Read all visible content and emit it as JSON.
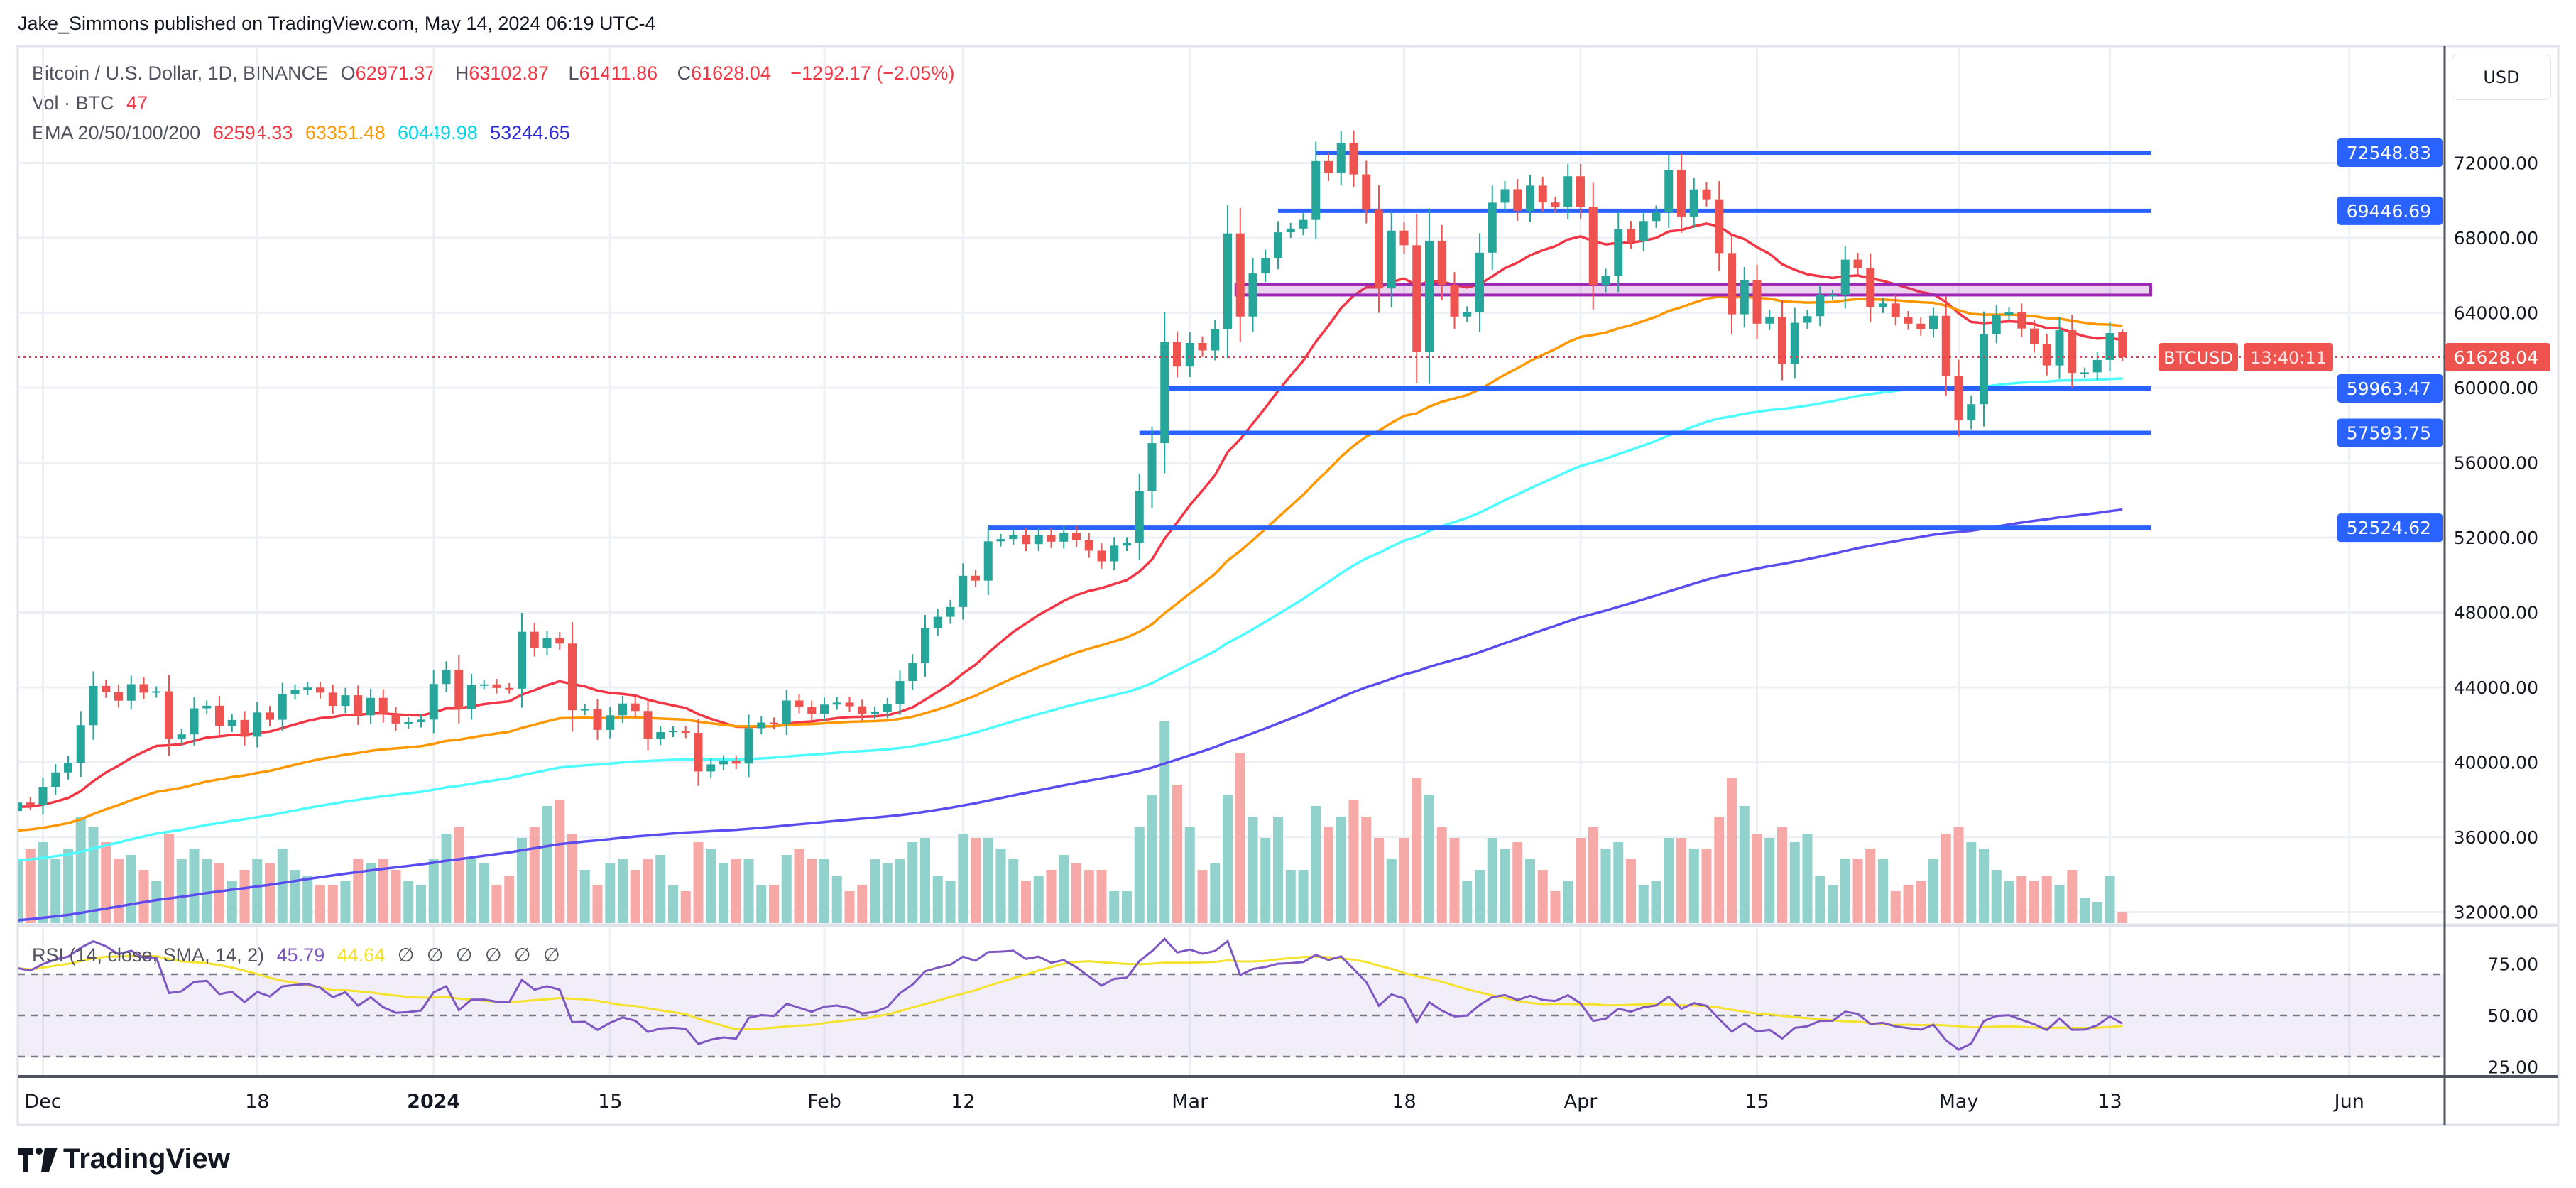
{
  "header": {
    "title": "Jake_Simmons published on TradingView.com, May 14, 2024 06:19 UTC-4"
  },
  "legend": {
    "symbol": "Bitcoin / U.S. Dollar, 1D, BINANCE",
    "open_label": "O",
    "open": "62971.37",
    "high_label": "H",
    "high": "63102.87",
    "low_label": "L",
    "low": "61411.86",
    "close_label": "C",
    "close": "61628.04",
    "change": "−1292.17 (−2.05%)",
    "volume_label": "Vol · BTC",
    "volume": "47",
    "ema_label": "EMA 20/50/100/200",
    "ema20": "62594.33",
    "ema50": "63351.48",
    "ema100": "60449.98",
    "ema200": "53244.65"
  },
  "rsi_legend": {
    "label": "RSI (14, close, SMA, 14, 2)",
    "rsi": "45.79",
    "sma": "44.64",
    "na": [
      "∅",
      "∅",
      "∅",
      "∅",
      "∅",
      "∅"
    ]
  },
  "currency_button": "USD",
  "price_tag": {
    "symbol": "BTCUSD",
    "price": "61628.04",
    "countdown": "13:40:11"
  },
  "footer": {
    "logo_text": "TradingView"
  },
  "colors": {
    "up": "#26a69a",
    "down": "#ef5350",
    "ema20": "#f23645",
    "ema50": "#ff9800",
    "ema100": "#4dfcff",
    "ema200": "#5b4cf0",
    "level": "#2962ff",
    "zone": "#9c27b0",
    "rsi": "#7e57c2",
    "rsi_sma": "#f5e22c"
  },
  "chart_data": {
    "type": "candlestick",
    "interval": "1D",
    "date_range": [
      "2023-11-29",
      "2024-05-14"
    ],
    "close": [
      37850,
      37720,
      38690,
      39460,
      39970,
      41980,
      44080,
      43770,
      43290,
      44170,
      43720,
      43790,
      41240,
      41490,
      42880,
      43020,
      41940,
      42260,
      41370,
      42660,
      42270,
      43650,
      43860,
      43990,
      43720,
      43010,
      43580,
      42510,
      43440,
      42580,
      42070,
      42140,
      42280,
      44180,
      44950,
      42850,
      44150,
      44160,
      43970,
      43930,
      46970,
      46110,
      46630,
      46340,
      42780,
      42840,
      41730,
      42510,
      43140,
      42740,
      41260,
      41610,
      41680,
      41570,
      39510,
      39890,
      40080,
      39930,
      41820,
      42120,
      42030,
      43300,
      42950,
      42580,
      43080,
      43190,
      42990,
      42580,
      42700,
      43090,
      44340,
      45290,
      47150,
      47770,
      48290,
      49960,
      49700,
      51800,
      51920,
      52140,
      51650,
      52140,
      51780,
      52260,
      51850,
      51300,
      50730,
      51570,
      51730,
      54480,
      57040,
      62430,
      61130,
      62390,
      61990,
      63110,
      68240,
      63800,
      66100,
      66920,
      68300,
      68500,
      68960,
      72100,
      71450,
      73070,
      71390,
      69500,
      65300,
      68390,
      67610,
      61930,
      67850,
      65500,
      63800,
      64040,
      67210,
      69880,
      70600,
      69450,
      70790,
      69890,
      69650,
      71290,
      69650,
      65470,
      65980,
      68490,
      67830,
      68900,
      69360,
      71620,
      69140,
      70590,
      70060,
      67190,
      63920,
      65740,
      63420,
      63790,
      61280,
      63470,
      63820,
      64940,
      64950,
      66840,
      66400,
      64290,
      64500,
      63760,
      63420,
      63110,
      63840,
      60640,
      58250,
      59120,
      62880,
      63890,
      64030,
      63160,
      62330,
      61190,
      63070,
      60790,
      60820,
      61480,
      62920,
      61628.04
    ],
    "last_candle": {
      "open": 62971.37,
      "high": 63102.87,
      "low": 61411.86,
      "close": 61628.04
    },
    "volume_relative": [
      30,
      35,
      38,
      30,
      35,
      50,
      45,
      38,
      30,
      32,
      25,
      20,
      42,
      30,
      35,
      30,
      28,
      20,
      25,
      30,
      28,
      35,
      25,
      22,
      18,
      18,
      20,
      30,
      28,
      30,
      25,
      20,
      18,
      30,
      42,
      45,
      30,
      28,
      18,
      22,
      40,
      45,
      55,
      58,
      42,
      25,
      18,
      28,
      30,
      25,
      30,
      32,
      18,
      15,
      38,
      35,
      28,
      30,
      30,
      18,
      18,
      32,
      35,
      30,
      30,
      22,
      15,
      18,
      30,
      28,
      30,
      38,
      40,
      22,
      20,
      42,
      40,
      40,
      35,
      30,
      20,
      22,
      25,
      32,
      28,
      25,
      25,
      15,
      15,
      45,
      60,
      95,
      65,
      45,
      25,
      28,
      60,
      80,
      50,
      40,
      50,
      25,
      25,
      55,
      45,
      50,
      58,
      50,
      40,
      30,
      40,
      68,
      60,
      45,
      40,
      20,
      25,
      40,
      35,
      38,
      30,
      25,
      15,
      20,
      40,
      45,
      35,
      38,
      30,
      18,
      20,
      40,
      40,
      35,
      35,
      50,
      68,
      55,
      42,
      40,
      45,
      38,
      42,
      22,
      18,
      30,
      30,
      35,
      30,
      15,
      18,
      20,
      30,
      42,
      45,
      38,
      35,
      25,
      20,
      22,
      20,
      22,
      18,
      25,
      12,
      10,
      22,
      5
    ],
    "ema_last": {
      "ema20": 62594.33,
      "ema50": 63351.48,
      "ema100": 60449.98,
      "ema200": 53244.65
    },
    "rsi_last": {
      "rsi": 45.79,
      "sma": 44.64
    },
    "rsi_levels": [
      70,
      50,
      30
    ],
    "rsi_ticks": [
      "75.00",
      "50.00",
      "25.00"
    ],
    "horizontal_levels": [
      {
        "price": 72548.83,
        "label": "72548.83",
        "from": "2024-03-11"
      },
      {
        "price": 69446.69,
        "label": "69446.69",
        "from": "2024-03-08"
      },
      {
        "price": 59963.47,
        "label": "59963.47",
        "from": "2024-02-28"
      },
      {
        "price": 57593.75,
        "label": "57593.75",
        "from": "2024-02-26"
      },
      {
        "price": 52524.62,
        "label": "52524.62",
        "from": "2024-02-14"
      }
    ],
    "zone": {
      "from": "2024-03-05",
      "price_low": 64950,
      "price_high": 65500
    },
    "y_ticks": [
      "72000.00",
      "68000.00",
      "64000.00",
      "60000.00",
      "56000.00",
      "52000.00",
      "48000.00",
      "44000.00",
      "40000.00",
      "36000.00",
      "32000.00"
    ],
    "x_ticks": [
      {
        "date": "2023-12-01",
        "label": "Dec"
      },
      {
        "date": "2023-12-18",
        "label": "18"
      },
      {
        "date": "2024-01-01",
        "label": "2024",
        "bold": true
      },
      {
        "date": "2024-01-15",
        "label": "15"
      },
      {
        "date": "2024-02-01",
        "label": "Feb"
      },
      {
        "date": "2024-02-12",
        "label": "12"
      },
      {
        "date": "2024-03-01",
        "label": "Mar"
      },
      {
        "date": "2024-03-18",
        "label": "18"
      },
      {
        "date": "2024-04-01",
        "label": "Apr"
      },
      {
        "date": "2024-04-15",
        "label": "15"
      },
      {
        "date": "2024-05-01",
        "label": "May"
      },
      {
        "date": "2024-05-13",
        "label": "13"
      },
      {
        "date": "2024-06-01",
        "label": "Jun"
      }
    ],
    "grid": true
  }
}
